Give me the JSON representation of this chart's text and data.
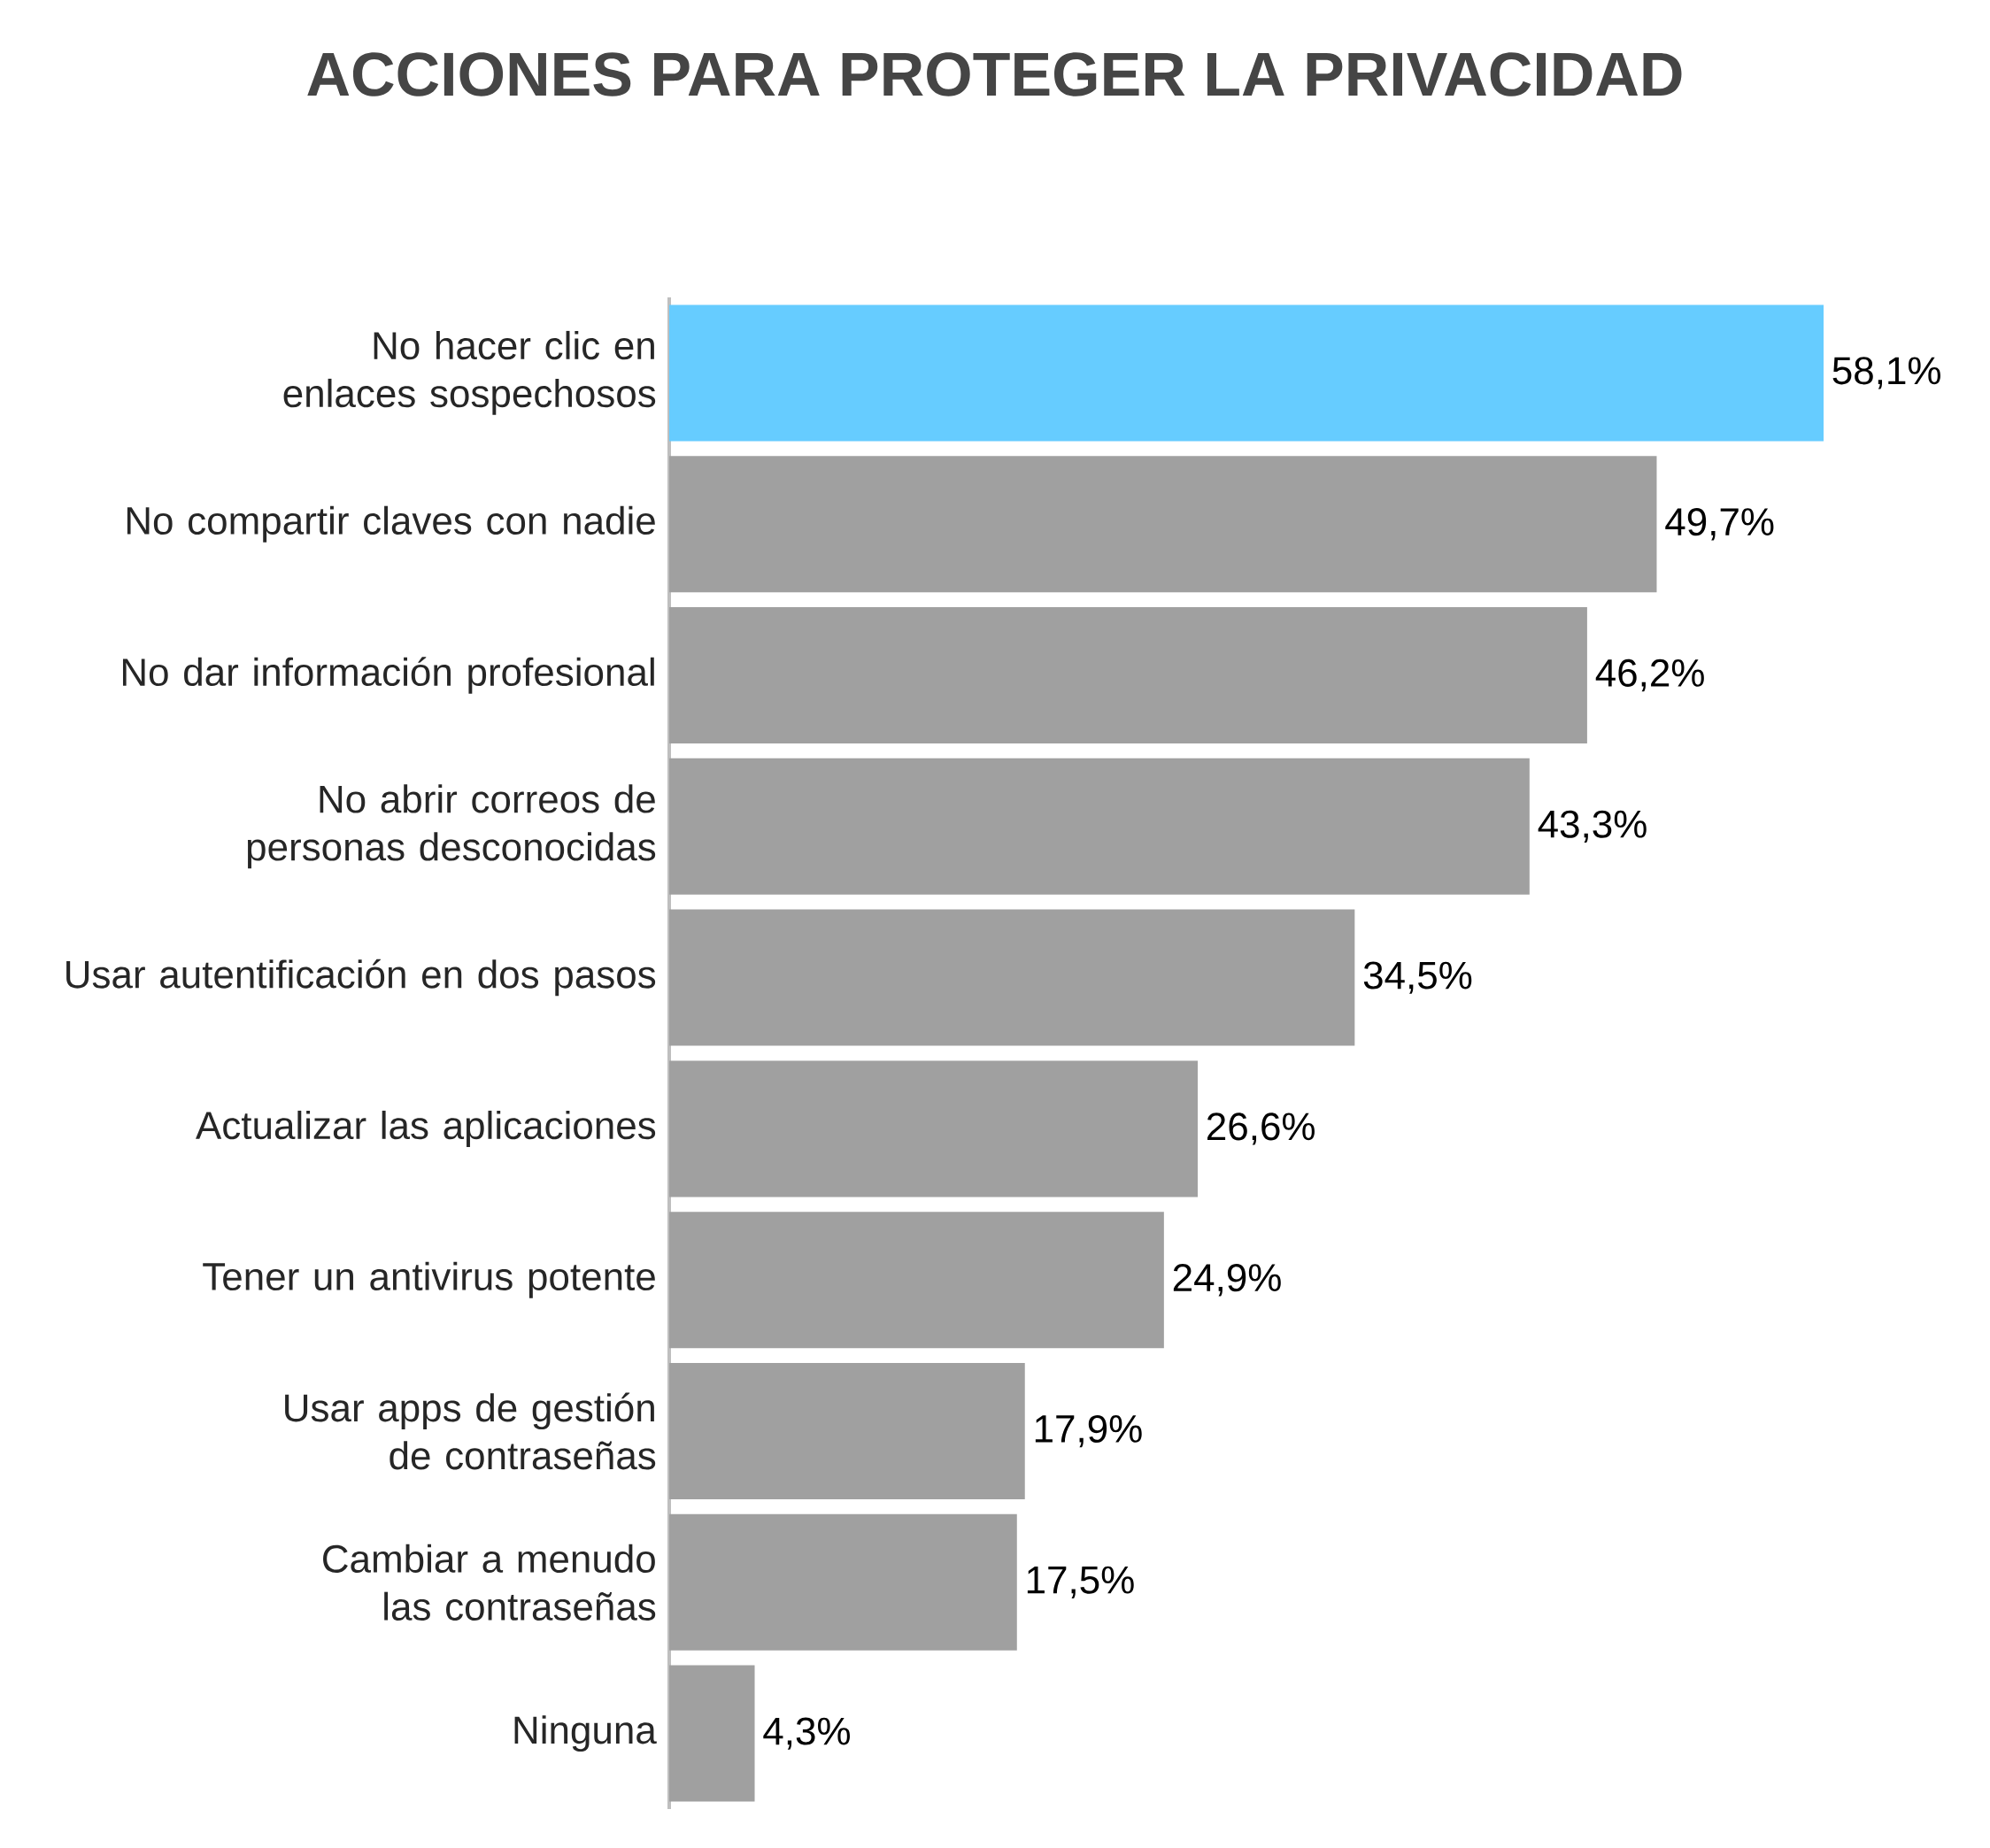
{
  "chart_data": {
    "type": "bar",
    "orientation": "horizontal",
    "title": "ACCIONES PARA PROTEGER LA PRIVACIDAD",
    "categories": [
      "No hacer clic en enlaces sospechosos",
      "No compartir claves con nadie",
      "No dar información profesional",
      "No abrir correos de personas desconocidas",
      "Usar autentificación en dos pasos",
      "Actualizar las aplicaciones",
      "Tener un antivirus potente",
      "Usar apps de gestión de contraseñas",
      "Cambiar a menudo las contraseñas",
      "Ninguna"
    ],
    "values": [
      58.1,
      49.7,
      46.2,
      43.3,
      34.5,
      26.6,
      24.9,
      17.9,
      17.5,
      4.3
    ],
    "colors": [
      "#66ccff",
      "#a0a0a0",
      "#a0a0a0",
      "#a0a0a0",
      "#a0a0a0",
      "#a0a0a0",
      "#a0a0a0",
      "#a0a0a0",
      "#a0a0a0",
      "#a0a0a0"
    ],
    "value_labels": [
      "58,1%",
      "49,7%",
      "46,2%",
      "43,3%",
      "34,5%",
      "26,6%",
      "24,9%",
      "17,9%",
      "17,5%",
      "4,3%"
    ]
  }
}
